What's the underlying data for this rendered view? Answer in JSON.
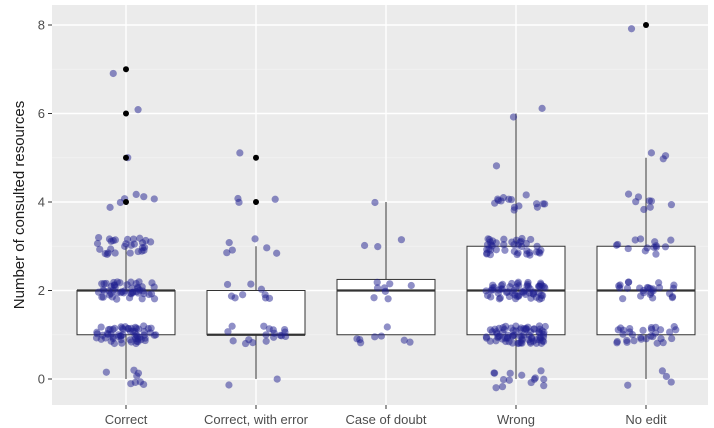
{
  "chart_data": {
    "type": "boxplot",
    "title": "",
    "xlabel": "",
    "ylabel": "Number of consulted resources",
    "ylim": [
      -0.55,
      8.4
    ],
    "yticks": [
      0,
      2,
      4,
      6,
      8
    ],
    "grid": true,
    "legend": "none",
    "colors": {
      "panel": "#ebebeb",
      "grid_major": "#ffffff",
      "grid_minor": "#f4f4f4",
      "box_fill": "#ffffff",
      "box_line": "#333333",
      "points": "#1f1f8f",
      "outliers": "#000000"
    },
    "categories": [
      "Correct",
      "Correct, with error",
      "Case of doubt",
      "Wrong",
      "No edit"
    ],
    "boxes": [
      {
        "category": "Correct",
        "lower_whisker": 0,
        "q1": 1,
        "median": 2,
        "q3": 2,
        "upper_whisker": 3,
        "outliers": [
          4,
          5,
          6,
          7
        ]
      },
      {
        "category": "Correct, with error",
        "lower_whisker": 0,
        "q1": 1,
        "median": 1,
        "q3": 2,
        "upper_whisker": 3,
        "outliers": [
          4,
          5
        ]
      },
      {
        "category": "Case of doubt",
        "lower_whisker": 1,
        "q1": 1,
        "median": 2,
        "q3": 2.25,
        "upper_whisker": 4,
        "outliers": []
      },
      {
        "category": "Wrong",
        "lower_whisker": 0,
        "q1": 1,
        "median": 2,
        "q3": 3,
        "upper_whisker": 6,
        "outliers": []
      },
      {
        "category": "No edit",
        "lower_whisker": 0,
        "q1": 1,
        "median": 2,
        "q3": 3,
        "upper_whisker": 5,
        "outliers": [
          8
        ]
      }
    ],
    "jitter_points": [
      {
        "category": "Correct",
        "counts": {
          "0": 8,
          "1": 60,
          "2": 50,
          "3": 28,
          "4": 6,
          "5": 1,
          "6": 1,
          "7": 1
        }
      },
      {
        "category": "Correct, with error",
        "counts": {
          "0": 2,
          "1": 18,
          "2": 9,
          "3": 6,
          "4": 3,
          "5": 1
        }
      },
      {
        "category": "Case of doubt",
        "counts": {
          "1": 8,
          "2": 8,
          "3": 3,
          "4": 1
        }
      },
      {
        "category": "Wrong",
        "counts": {
          "0": 14,
          "1": 75,
          "2": 60,
          "3": 40,
          "4": 15,
          "5": 1,
          "6": 2
        }
      },
      {
        "category": "No edit",
        "counts": {
          "0": 4,
          "1": 30,
          "2": 26,
          "3": 14,
          "4": 8,
          "5": 3,
          "8": 1
        }
      }
    ]
  }
}
